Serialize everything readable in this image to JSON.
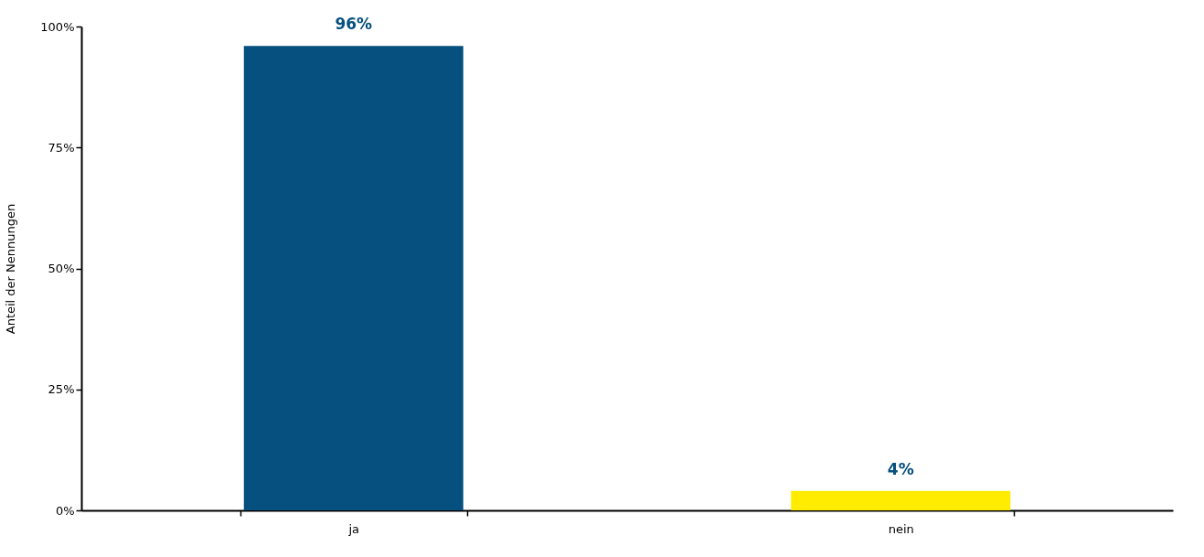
{
  "chart_data": {
    "type": "bar",
    "ylabel": "Anteil der Nennungen",
    "categories": [
      "ja",
      "nein"
    ],
    "values": [
      96,
      4
    ],
    "colors": [
      "#05507e",
      "#ffec00"
    ],
    "value_labels": [
      "96%",
      "4%"
    ],
    "ylim": [
      0,
      100
    ],
    "yticks": [
      {
        "value": 0,
        "label": "0%"
      },
      {
        "value": 25,
        "label": "25%"
      },
      {
        "value": 50,
        "label": "50%"
      },
      {
        "value": 75,
        "label": "75%"
      },
      {
        "value": 100,
        "label": "100%"
      }
    ],
    "grid": false
  }
}
